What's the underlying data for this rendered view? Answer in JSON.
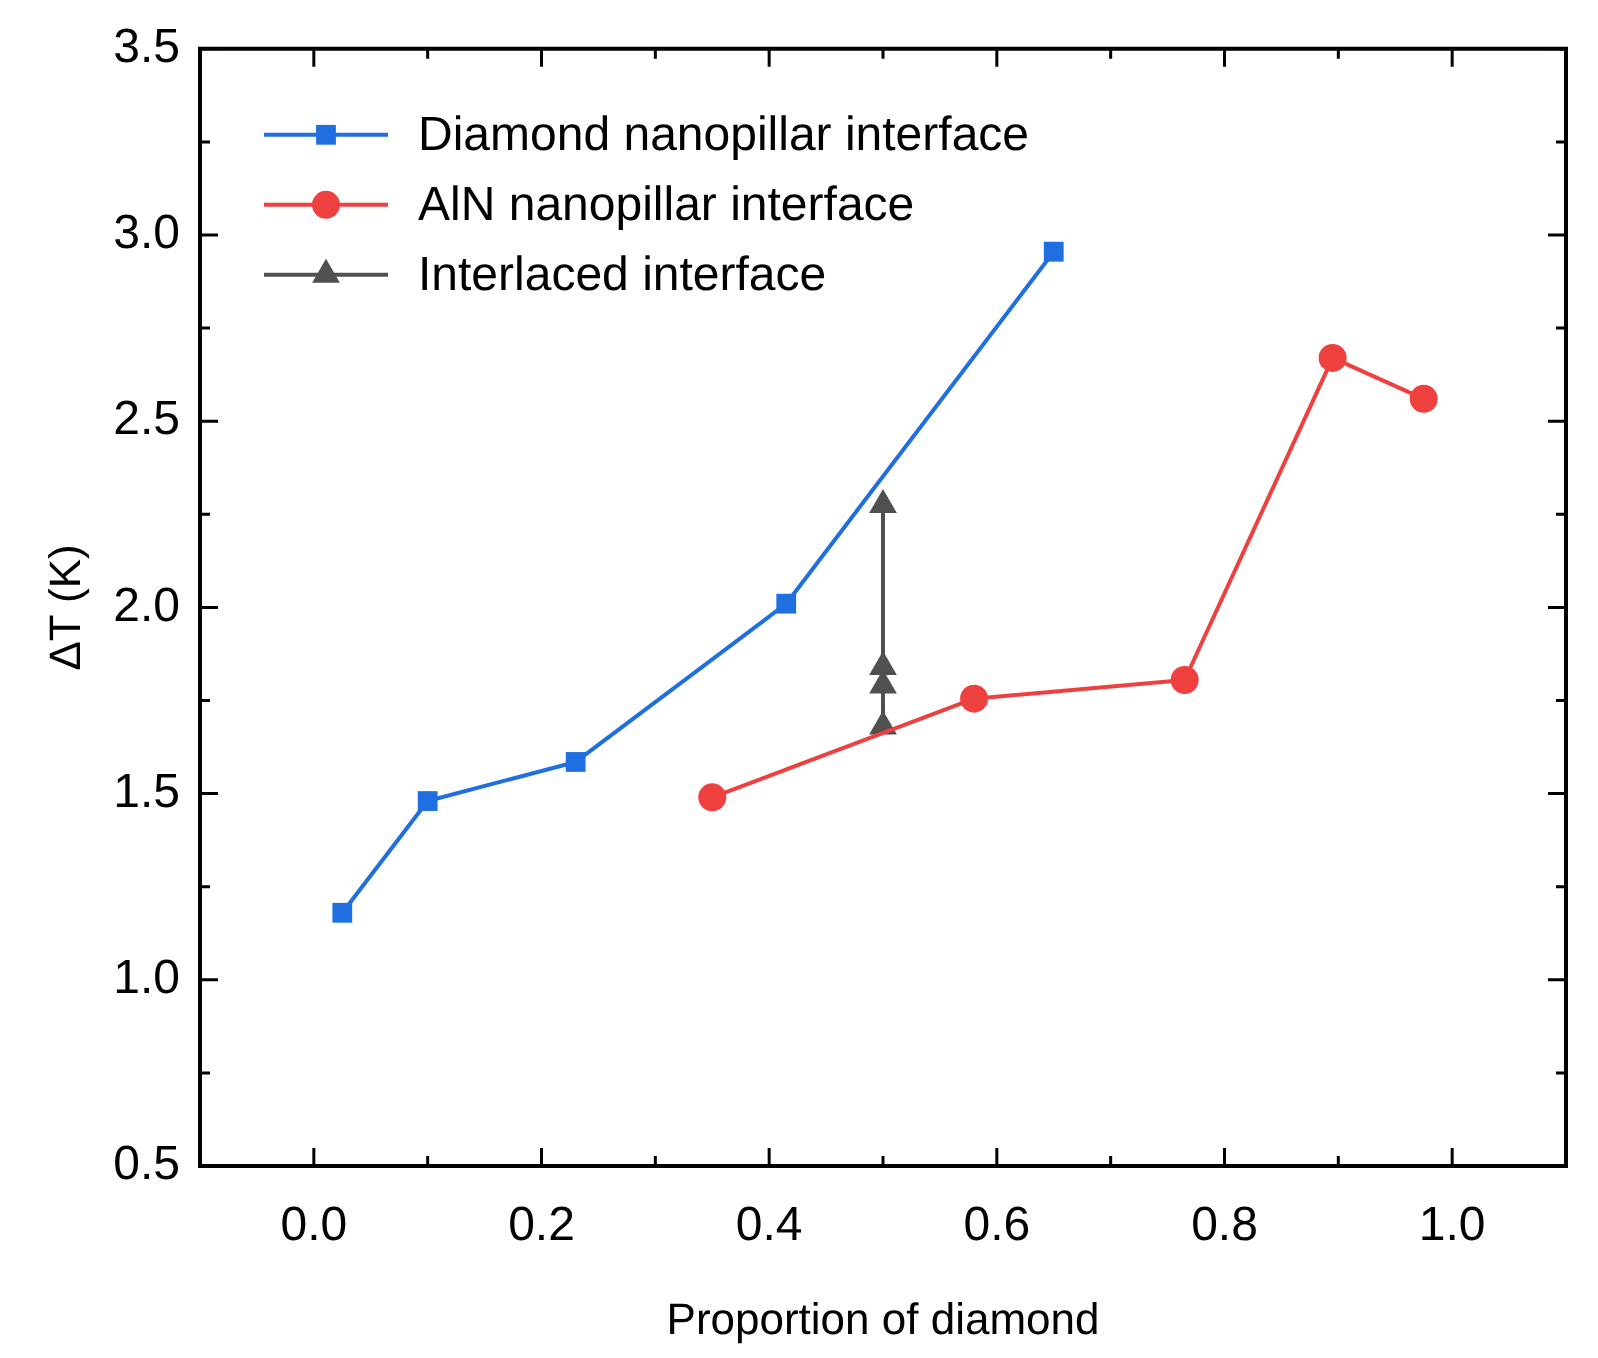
{
  "chart_data": {
    "type": "line",
    "xlabel": "Proportion of diamond",
    "ylabel": "ΔT (K)",
    "xlim": [
      -0.1,
      1.1
    ],
    "ylim": [
      0.5,
      3.5
    ],
    "xticks": [
      {
        "value": -0.1,
        "label": null
      },
      {
        "value": 0,
        "label": "0.0"
      },
      {
        "value": 0.1,
        "label": null
      },
      0.2,
      {
        "value": 0.3,
        "label": null
      },
      0.4,
      {
        "value": 0.5,
        "label": null
      },
      0.6,
      {
        "value": 0.7,
        "label": null
      },
      0.8,
      {
        "value": 0.9,
        "label": null
      },
      {
        "value": 1,
        "label": "1.0"
      }
    ],
    "yticks": [
      0.5,
      {
        "value": 0.75,
        "label": null
      },
      {
        "value": 1,
        "label": "1.0"
      },
      {
        "value": 1.25,
        "label": null
      },
      1.5,
      {
        "value": 1.75,
        "label": null
      },
      {
        "value": 2,
        "label": "2.0"
      },
      {
        "value": 2.25,
        "label": null
      },
      2.5,
      {
        "value": 2.75,
        "label": null
      },
      {
        "value": 3,
        "label": "3.0"
      },
      {
        "value": 3.25,
        "label": null
      },
      3.5
    ],
    "grid": false,
    "legend": "top left",
    "line_style": "solid",
    "series": [
      {
        "name": "Diamond nanopillar interface",
        "color": "#1f6fe0",
        "marker": "square",
        "x": [
          0.025,
          0.1,
          0.23,
          0.415,
          0.65
        ],
        "values": [
          1.18,
          1.48,
          1.585,
          2.01,
          2.955
        ]
      },
      {
        "name": "AlN nanopillar interface",
        "color": "#ef4040",
        "marker": "circle",
        "x": [
          0.35,
          0.58,
          0.765,
          0.895,
          0.975
        ],
        "values": [
          1.49,
          1.755,
          1.805,
          2.67,
          2.56
        ]
      },
      {
        "name": "Interlaced interface",
        "color": "#505050",
        "marker": "triangle",
        "x": [
          0.5,
          0.5,
          0.5,
          0.5
        ],
        "values": [
          1.68,
          1.79,
          1.84,
          2.275
        ]
      }
    ]
  }
}
